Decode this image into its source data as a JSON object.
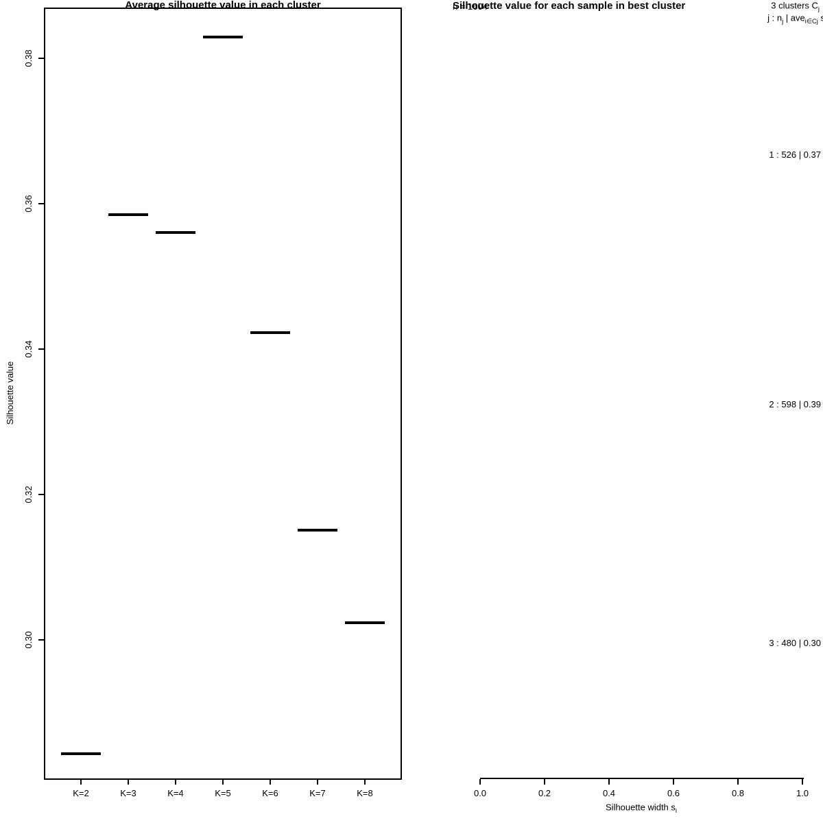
{
  "chart_data": [
    {
      "type": "line",
      "subtype": "category-segment-plot",
      "title": "Average silhouette value in each cluster",
      "ylabel": "Silhouette value",
      "xlabel": "",
      "categories": [
        "K=2",
        "K=3",
        "K=4",
        "K=5",
        "K=6",
        "K=7",
        "K=8"
      ],
      "values": [
        0.2843,
        0.3585,
        0.356,
        0.3829,
        0.3423,
        0.3151,
        0.3024
      ],
      "y_ticks": [
        "0.38",
        "0.36",
        "0.34",
        "0.32",
        "0.30"
      ],
      "ylim": [
        0.281,
        0.387
      ],
      "marker": "horizontal-segment",
      "grid": false,
      "legend": "none",
      "line_color": "#000000"
    },
    {
      "type": "bar",
      "subtype": "silhouette-plot",
      "title": "Silhouette value for each sample in best cluster",
      "n_label": "n = 1604",
      "n_total": 1604,
      "k_clusters": 3,
      "header_right_line1": [
        {
          "t": "3  clusters  C"
        },
        {
          "t": "j",
          "sub": true
        }
      ],
      "header_right_line2": [
        {
          "t": "j :  n"
        },
        {
          "t": "j",
          "sub": true
        },
        {
          "t": " | ave"
        },
        {
          "t": "i∈Cj",
          "sub": true
        },
        {
          "t": " s"
        },
        {
          "t": "i",
          "sub": true
        }
      ],
      "xlabel_parts": [
        {
          "t": "Silhouette width s"
        },
        {
          "t": "i",
          "sub": true
        }
      ],
      "x_ticks": [
        "0.0",
        "0.2",
        "0.4",
        "0.6",
        "0.8",
        "1.0"
      ],
      "xlim": [
        0,
        1
      ],
      "clusters": [
        {
          "j": 1,
          "n": 526,
          "avg_width": 0.37,
          "label": "1 :  526 | 0.37"
        },
        {
          "j": 2,
          "n": 598,
          "avg_width": 0.39,
          "label": "2 :  598 | 0.39"
        },
        {
          "j": 3,
          "n": 480,
          "avg_width": 0.3,
          "label": "3 :  480 | 0.30"
        }
      ],
      "grid": false,
      "legend": "none",
      "bar_color": "#000000"
    }
  ]
}
